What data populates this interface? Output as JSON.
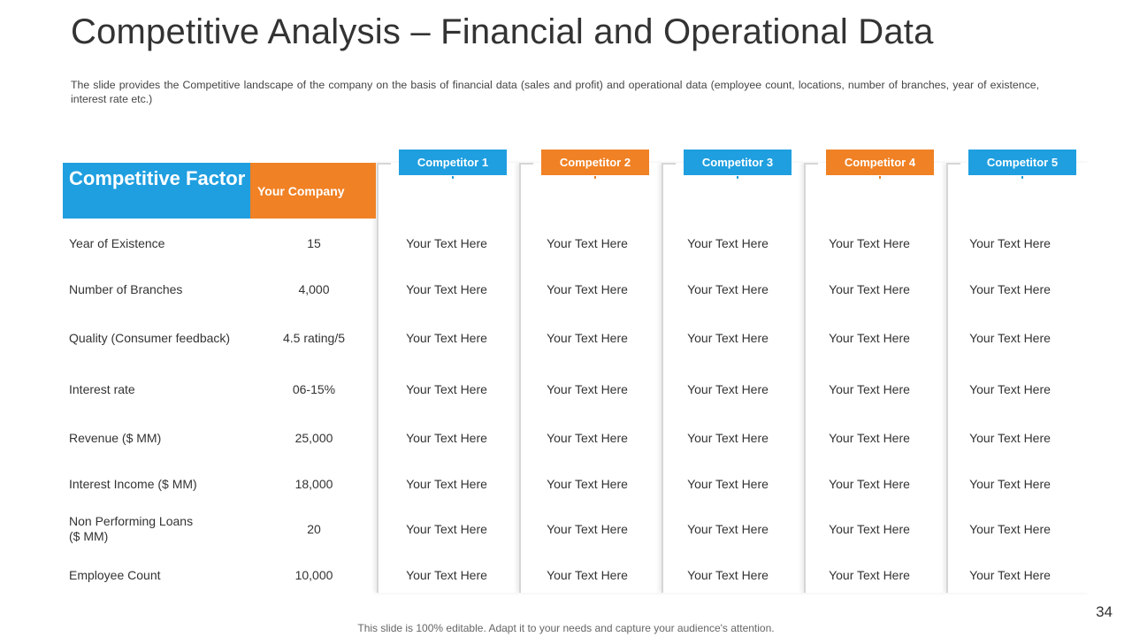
{
  "slide": {
    "title": "Competitive Analysis – Financial and Operational Data",
    "subtitle": "The slide provides the Competitive landscape of the company on the basis of financial data (sales and profit) and operational data (employee count, locations, number of branches, year of existence, interest rate etc.)",
    "page_number": "34",
    "footer": "This slide is 100% editable. Adapt it to your needs and capture your audience's attention."
  },
  "table": {
    "factor_header": "Competitive Factor",
    "company_header": "Your Company",
    "competitors": [
      {
        "label": "Competitor 1",
        "color": "#1f9fe0"
      },
      {
        "label": "Competitor 2",
        "color": "#f08124"
      },
      {
        "label": "Competitor 3",
        "color": "#1f9fe0"
      },
      {
        "label": "Competitor 4",
        "color": "#f08124"
      },
      {
        "label": "Competitor 5",
        "color": "#1f9fe0"
      }
    ],
    "rows": [
      {
        "factor": "Year of Existence",
        "company": "15",
        "values": [
          "Your Text Here",
          "Your Text Here",
          "Your Text Here",
          "Your Text Here",
          "Your Text Here"
        ]
      },
      {
        "factor": "Number of Branches",
        "company": "4,000",
        "values": [
          "Your Text Here",
          "Your Text Here",
          "Your Text Here",
          "Your Text Here",
          "Your Text Here"
        ]
      },
      {
        "factor": "Quality (Consumer feedback)",
        "company": "4.5 rating/5",
        "values": [
          "Your Text Here",
          "Your Text Here",
          "Your Text Here",
          "Your Text Here",
          "Your Text Here"
        ]
      },
      {
        "factor": "Interest rate",
        "company": "06-15%",
        "values": [
          "Your Text Here",
          "Your Text Here",
          "Your Text Here",
          "Your Text Here",
          "Your Text Here"
        ]
      },
      {
        "factor": "Revenue ($ MM)",
        "company": "25,000",
        "values": [
          "Your Text Here",
          "Your Text Here",
          "Your Text Here",
          "Your Text Here",
          "Your Text Here"
        ]
      },
      {
        "factor": "Interest Income ($ MM)",
        "company": "18,000",
        "values": [
          "Your Text Here",
          "Your Text Here",
          "Your Text Here",
          "Your Text Here",
          "Your Text Here"
        ]
      },
      {
        "factor": "Non Performing Loans ($ MM)",
        "company": "20",
        "values": [
          "Your Text Here",
          "Your Text Here",
          "Your Text Here",
          "Your Text Here",
          "Your Text Here"
        ]
      },
      {
        "factor": "Employee Count",
        "company": "10,000",
        "values": [
          "Your Text Here",
          "Your Text Here",
          "Your Text Here",
          "Your Text Here",
          "Your Text Here"
        ]
      }
    ]
  }
}
